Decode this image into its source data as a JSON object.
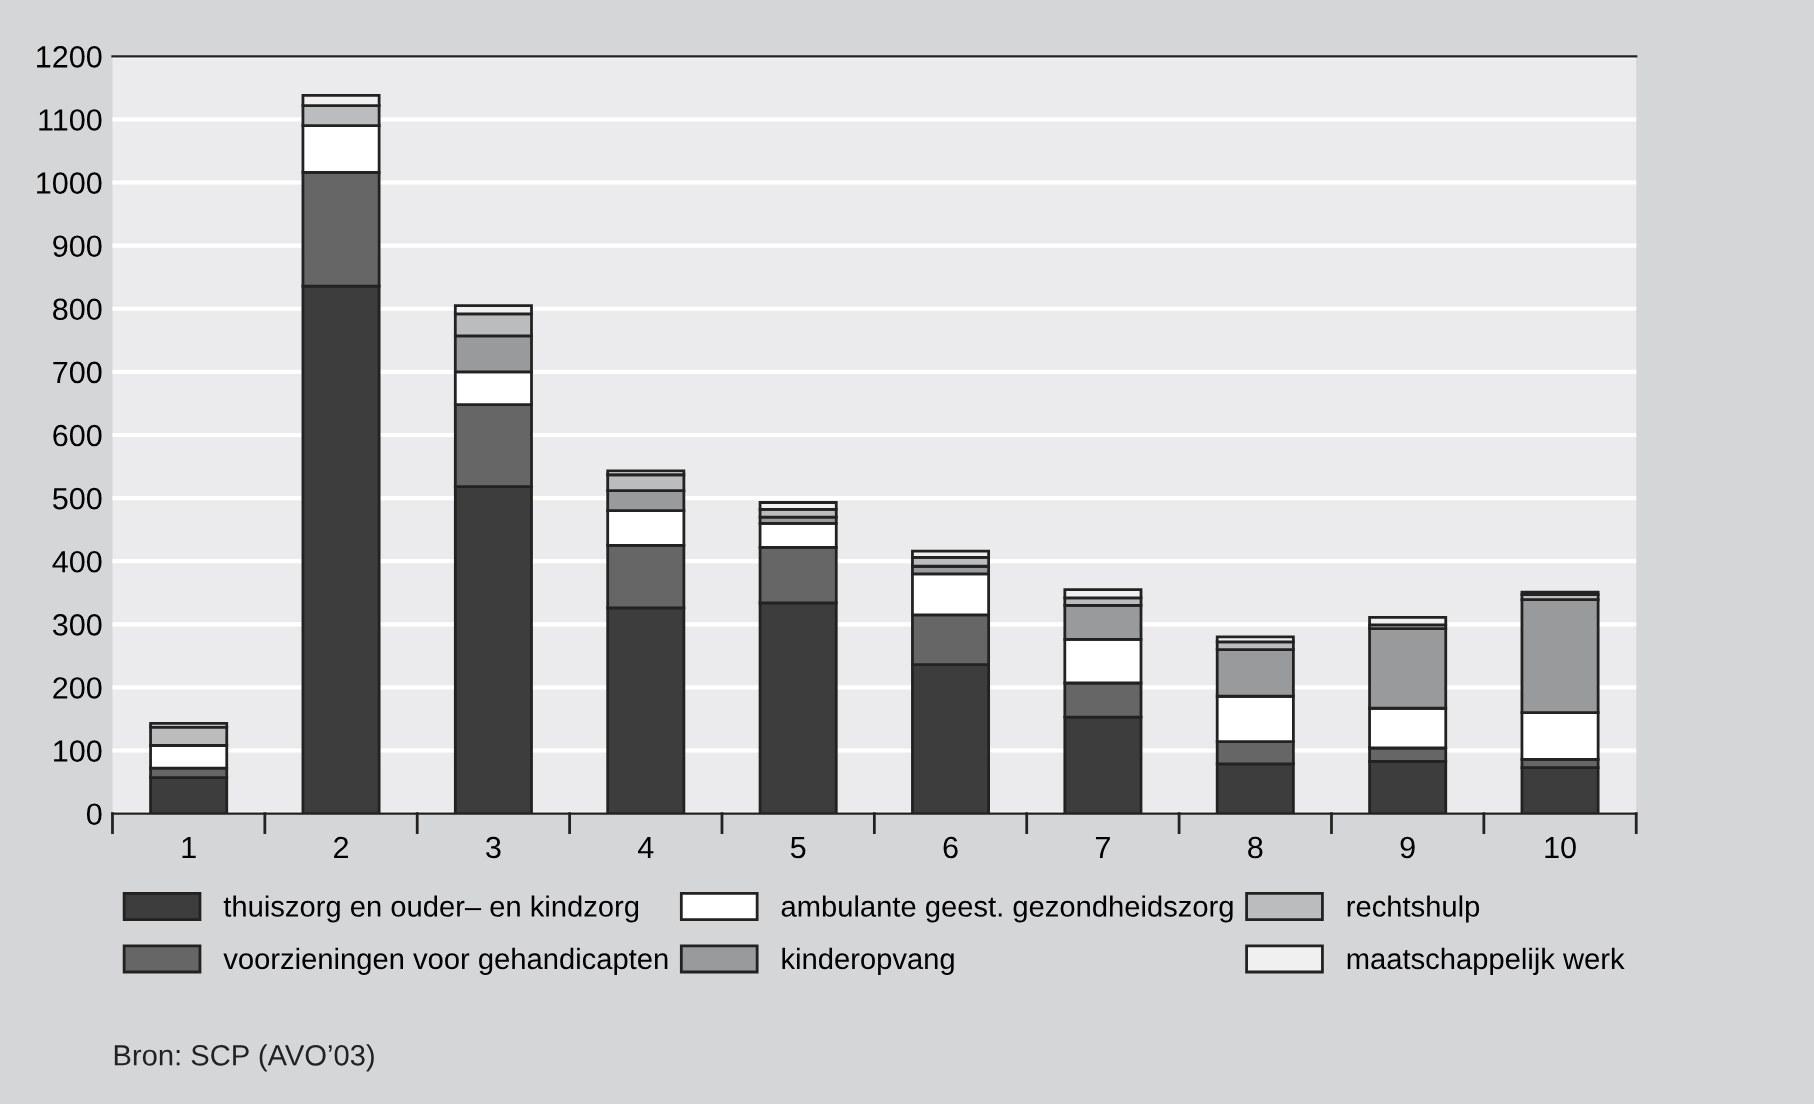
{
  "chart_data": {
    "type": "bar",
    "stacked": true,
    "categories": [
      "1",
      "2",
      "3",
      "4",
      "5",
      "6",
      "7",
      "8",
      "9",
      "10"
    ],
    "series": [
      {
        "name": "thuiszorg en ouder– en kindzorg",
        "color": "#3d3d3d",
        "values": [
          57,
          836,
          518,
          326,
          334,
          236,
          153,
          79,
          83,
          73
        ]
      },
      {
        "name": "voorzieningen voor gehandicapten",
        "color": "#666666",
        "values": [
          15,
          180,
          130,
          99,
          88,
          79,
          54,
          35,
          21,
          13
        ]
      },
      {
        "name": "ambulante geest. gezondheidszorg",
        "color": "#ffffff",
        "values": [
          36,
          74,
          52,
          55,
          38,
          65,
          69,
          72,
          63,
          74
        ]
      },
      {
        "name": "kinderopvang",
        "color": "#999a9c",
        "values": [
          null,
          null,
          57,
          32,
          10,
          12,
          54,
          74,
          126,
          179
        ]
      },
      {
        "name": "rechtshulp",
        "color": "#bbbcbe",
        "values": [
          29,
          32,
          35,
          25,
          12,
          14,
          12,
          12,
          6,
          8
        ]
      },
      {
        "name": "maatschappelijk werk",
        "color": "#f0f0f0",
        "values": [
          6,
          16,
          13,
          6,
          11,
          10,
          13,
          8,
          12,
          4
        ]
      }
    ],
    "ylim": [
      0,
      1200
    ],
    "yticks": [
      0,
      100,
      200,
      300,
      400,
      500,
      600,
      700,
      800,
      900,
      1000,
      1100,
      1200
    ],
    "grid": "y",
    "legend": "bottom",
    "annotations": [
      "Bron: SCP (AVO’03)"
    ]
  }
}
